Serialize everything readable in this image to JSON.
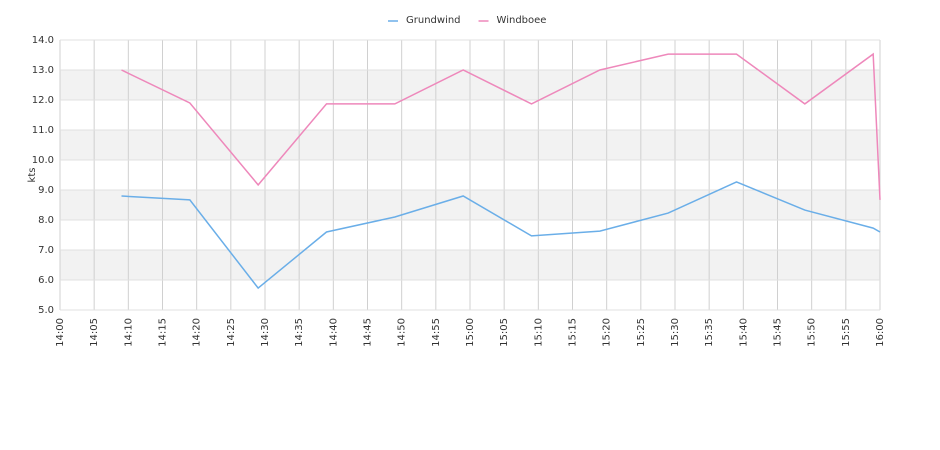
{
  "chart_data": {
    "type": "line",
    "y_label": "kts",
    "x": [
      "14:09",
      "14:19",
      "14:29",
      "14:39",
      "14:49",
      "14:59",
      "15:09",
      "15:19",
      "15:29",
      "15:39",
      "15:49",
      "15:59",
      "16:00"
    ],
    "series": [
      {
        "name": "Grundwind",
        "color": "#6aaee8",
        "values": [
          8.8,
          8.67,
          5.73,
          7.6,
          8.1,
          8.8,
          7.47,
          7.63,
          8.23,
          9.27,
          8.33,
          7.73,
          7.6
        ]
      },
      {
        "name": "Windboee",
        "color": "#ee88bb",
        "values": [
          13.0,
          11.9,
          9.17,
          11.87,
          11.87,
          13.0,
          11.87,
          13.0,
          13.53,
          13.53,
          11.87,
          13.53,
          8.67
        ]
      }
    ],
    "xlim": [
      "14:00",
      "16:00"
    ],
    "xticks": [
      "14:00",
      "14:05",
      "14:10",
      "14:15",
      "14:20",
      "14:25",
      "14:30",
      "14:35",
      "14:40",
      "14:45",
      "14:50",
      "14:55",
      "15:00",
      "15:05",
      "15:10",
      "15:15",
      "15:20",
      "15:25",
      "15:30",
      "15:35",
      "15:40",
      "15:45",
      "15:50",
      "15:55",
      "16:00"
    ],
    "ylim": [
      5,
      14
    ],
    "yticks": [
      {
        "value": 5,
        "label": "5.0"
      },
      {
        "value": 6,
        "label": "6.0"
      },
      {
        "value": 7,
        "label": "7.0"
      },
      {
        "value": 8,
        "label": "8.0"
      },
      {
        "value": 9,
        "label": "9.0"
      },
      {
        "value": 10,
        "label": "10.0"
      },
      {
        "value": 11,
        "label": "11.0"
      },
      {
        "value": 12,
        "label": "12.0"
      },
      {
        "value": 13,
        "label": "13.0"
      },
      {
        "value": 14,
        "label": "14.0"
      }
    ],
    "grid": true,
    "legend": "top"
  }
}
